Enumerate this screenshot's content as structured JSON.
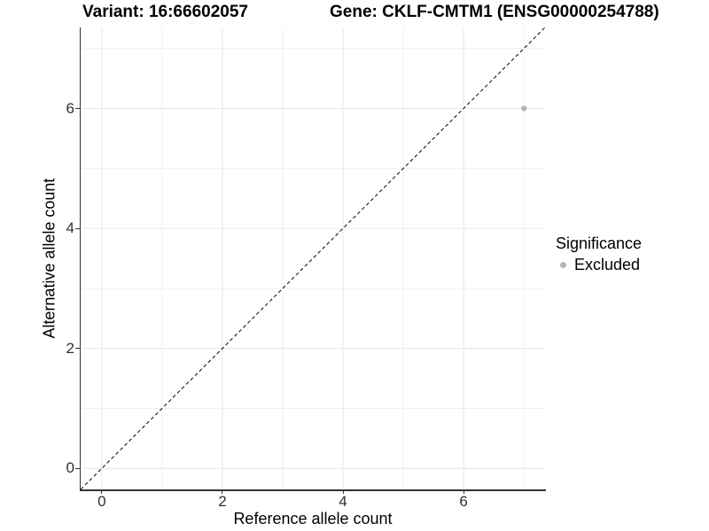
{
  "chart_data": {
    "type": "scatter",
    "title_left": "Variant: 16:66602057",
    "title_right": "Gene: CKLF-CMTM1 (ENSG00000254788)",
    "xlabel": "Reference allele count",
    "ylabel": "Alternative allele count",
    "xlim": [
      -0.35,
      7.35
    ],
    "ylim": [
      -0.35,
      7.35
    ],
    "x_major_ticks": [
      0,
      2,
      4,
      6
    ],
    "y_major_ticks": [
      0,
      2,
      4,
      6
    ],
    "x_minor_gridlines": [
      1,
      3,
      5,
      7
    ],
    "y_minor_gridlines": [
      1,
      3,
      5,
      7
    ],
    "grid": "major and minor gridlines on white background",
    "identity_line": {
      "equation": "y = x",
      "style": "dashed",
      "color": "#000000"
    },
    "series": [
      {
        "name": "Excluded",
        "color": "#b5b5b5",
        "points": [
          {
            "x": 7,
            "y": 6
          }
        ]
      }
    ],
    "legend": {
      "title": "Significance",
      "position": "right",
      "entries": [
        {
          "label": "Excluded",
          "color": "#b5b5b5"
        }
      ]
    }
  },
  "colors": {
    "background": "#ffffff",
    "axis_line": "#333333",
    "tick_text": "#303030",
    "grid_major": "#e6e6e6",
    "grid_minor": "#f0f0f0"
  }
}
